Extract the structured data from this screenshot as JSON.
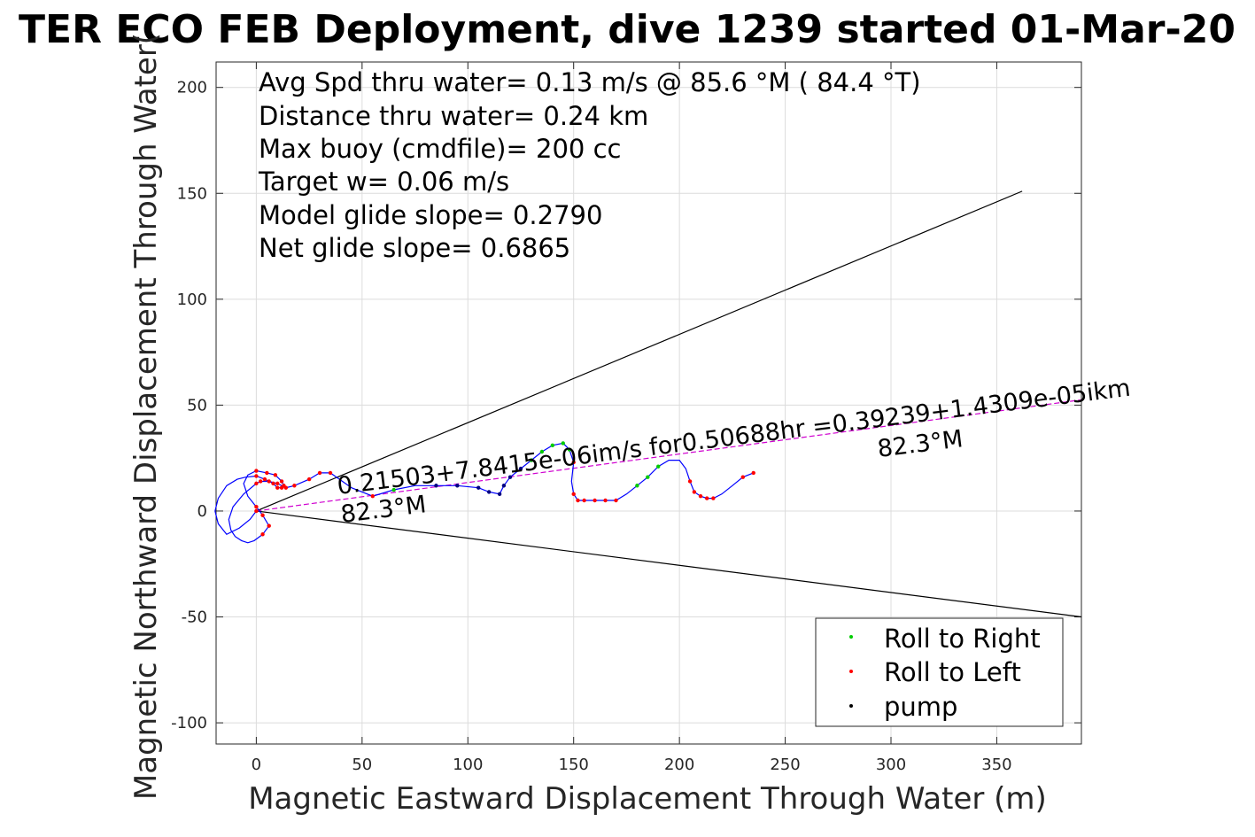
{
  "chart_data": {
    "type": "scatter",
    "title": "TER ECO FEB Deployment, dive 1239 started 01-Mar-20",
    "xlabel": "Magnetic Eastward Displacement Through Water (m)",
    "ylabel": "Magnetic Northward Displacement Through Water(",
    "xlim": [
      -19,
      390
    ],
    "ylim": [
      -110,
      212
    ],
    "x_ticks": [
      0,
      50,
      100,
      150,
      200,
      250,
      300,
      350
    ],
    "y_ticks": [
      200,
      150,
      100,
      50,
      0,
      -50,
      -100
    ],
    "grid": true,
    "legend_position": "bottom-right",
    "info_lines": [
      "Avg Spd thru water=  0.13 m/s @  85.6 °M ( 84.4 °T)",
      "Distance thru water=  0.24 km",
      "Max buoy (cmdfile)= 200 cc",
      "Target w= 0.06 m/s",
      "Model glide slope= 0.2790",
      "Net glide slope= 0.6865"
    ],
    "annotations": [
      {
        "text": "0.21503+7.8415e-06im/s for0.50688hr =0.39239+1.4309e-05ikm",
        "at": [
          40,
          9
        ],
        "angle_deg": -7.1
      },
      {
        "text": "82.3°M",
        "at": [
          40,
          -6
        ],
        "angle_deg": -7.1
      },
      {
        "text": "82.3°M",
        "at": [
          292,
          25
        ],
        "angle_deg": -7.1
      }
    ],
    "cone_lines": [
      {
        "name": "cone-upper",
        "x": [
          0,
          362
        ],
        "y": [
          0,
          151
        ]
      },
      {
        "name": "cone-lower",
        "x": [
          0,
          390
        ],
        "y": [
          0,
          -50
        ]
      },
      {
        "name": "heading-line",
        "x": [
          0,
          390
        ],
        "y": [
          0,
          52.5
        ]
      }
    ],
    "track": {
      "x": [
        0,
        -3,
        -8,
        -14,
        -18,
        -19.5,
        -18,
        -14,
        -9,
        -5,
        0,
        4,
        8,
        10,
        12,
        13,
        12,
        9,
        5,
        0,
        -4,
        -6,
        -4,
        0,
        3,
        6,
        3,
        -1,
        -4,
        -7,
        -10,
        -12,
        -13,
        -11,
        -6,
        0,
        2,
        6,
        10,
        14,
        18,
        25,
        30,
        35,
        45,
        55,
        65,
        75,
        85,
        95,
        105,
        110,
        115,
        117,
        120,
        125,
        130,
        135,
        140,
        145,
        148,
        150,
        149,
        150,
        152,
        155,
        160,
        165,
        170,
        175,
        180,
        185,
        190,
        195,
        200,
        203,
        205,
        207,
        210,
        213,
        216,
        220,
        225,
        230,
        235
      ],
      "y": [
        0,
        -4,
        -8,
        -11,
        -6,
        0,
        6,
        12,
        15,
        16,
        16.5,
        15,
        13,
        11,
        11,
        12,
        14,
        17,
        18,
        19,
        17,
        13,
        7,
        2,
        -2,
        -7,
        -11,
        -14,
        -15,
        -14,
        -12,
        -9,
        -4,
        2,
        8,
        13,
        14,
        14,
        13,
        11,
        12,
        15,
        18,
        18,
        11,
        7,
        10,
        12,
        12,
        12,
        11,
        9,
        8,
        12,
        16,
        20,
        24,
        28,
        31,
        32,
        29,
        23,
        14,
        8,
        5,
        5,
        5,
        5,
        5,
        8,
        12,
        16,
        21,
        24,
        24,
        20,
        14,
        9,
        7,
        6,
        6,
        8,
        12,
        16,
        18
      ]
    },
    "series": [
      {
        "name": "Roll to Right",
        "color": "#00cc00",
        "segments": [
          [
            3,
            14
          ],
          [
            25,
            38
          ],
          [
            60,
            68
          ],
          [
            130,
            135
          ],
          [
            140,
            148
          ],
          [
            180,
            190
          ]
        ]
      },
      {
        "name": "Roll to Left",
        "color": "#ff0000",
        "segments": [
          [
            0,
            24
          ],
          [
            24,
            36
          ],
          [
            52,
            58
          ],
          [
            150,
            170
          ],
          [
            205,
            218
          ],
          [
            230,
            235
          ]
        ]
      },
      {
        "name": "pump",
        "color": "#000000",
        "segments": [
          [
            85,
            118
          ],
          [
            119,
            128
          ]
        ]
      }
    ],
    "colors": {
      "track": "#0000ff",
      "heading_line": "#d000d0",
      "roll_right": "#00cc00",
      "roll_left": "#ff0000",
      "pump": "#000080"
    }
  }
}
